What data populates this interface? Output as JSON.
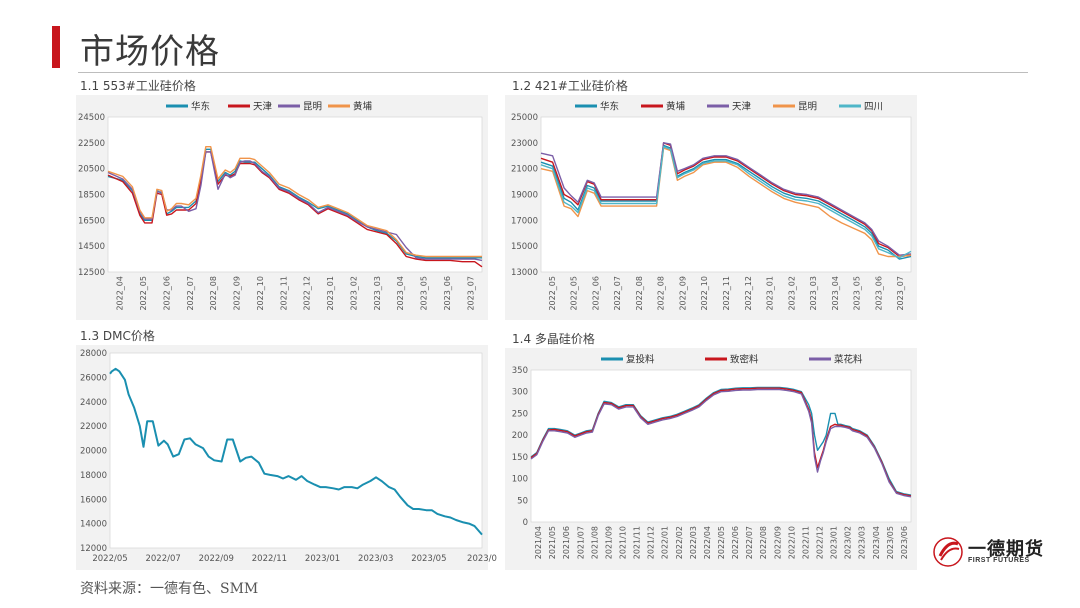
{
  "page": {
    "title": "市场价格",
    "source": "资料来源：一德有色、SMM",
    "logo_cn": "一德期货",
    "logo_en": "FIRST FUTURES"
  },
  "panels": {
    "p1": "1.1 553#工业硅价格",
    "p2": "1.2 421#工业硅价格",
    "p3": "1.3 DMC价格",
    "p4": "1.4 多晶硅价格"
  },
  "colors": {
    "accent": "#c8161d",
    "teal": "#1a8fb0",
    "red": "#c8161d",
    "purple": "#7b5ea7",
    "orange": "#f0944a",
    "cyan": "#4fb6c8"
  },
  "chart_data": [
    {
      "id": "c1",
      "type": "line",
      "ylim": [
        12500,
        24500
      ],
      "yticks": [
        "12500",
        "14500",
        "16500",
        "18500",
        "20500",
        "22500",
        "24500"
      ],
      "x_labels": [
        "2022_04",
        "2022_05",
        "2022_06",
        "2022_07",
        "2022_08",
        "2022_09",
        "2022_10",
        "2022_11",
        "2022_12",
        "2023_01",
        "2023_02",
        "2023_03",
        "2023_04",
        "2023_05",
        "2023_06",
        "2023_07"
      ],
      "x": [
        0,
        0.6,
        1,
        1.3,
        1.5,
        1.8,
        2,
        2.2,
        2.4,
        2.6,
        2.8,
        3,
        3.3,
        3.6,
        3.8,
        4,
        4.2,
        4.5,
        4.8,
        5,
        5.2,
        5.4,
        5.6,
        5.8,
        6,
        6.3,
        6.6,
        7,
        7.4,
        7.8,
        8.2,
        8.6,
        9,
        9.4,
        9.8,
        10.2,
        10.6,
        11,
        11.4,
        11.8,
        12.2,
        12.6,
        13,
        13.3,
        13.6,
        14,
        14.5,
        15,
        15.3
      ],
      "series": [
        {
          "name": "华东",
          "color": "#1a8fb0",
          "values": [
            19900,
            19600,
            18800,
            17000,
            16500,
            16500,
            18800,
            18600,
            17000,
            17200,
            17500,
            17500,
            17500,
            18000,
            19800,
            22000,
            22000,
            19500,
            20200,
            20000,
            20300,
            21100,
            21000,
            21000,
            21000,
            20500,
            20000,
            19100,
            18800,
            18300,
            17900,
            17400,
            17600,
            17300,
            17000,
            16500,
            16000,
            15700,
            15500,
            14900,
            13900,
            13700,
            13600,
            13600,
            13600,
            13600,
            13600,
            13600,
            13600
          ]
        },
        {
          "name": "天津",
          "color": "#c8161d",
          "values": [
            20000,
            19500,
            18600,
            16900,
            16300,
            16300,
            18600,
            18500,
            16900,
            17000,
            17300,
            17300,
            17300,
            17800,
            19600,
            21800,
            21800,
            19300,
            20000,
            19900,
            20100,
            20900,
            20900,
            20900,
            20800,
            20200,
            19800,
            18900,
            18600,
            18100,
            17700,
            17000,
            17400,
            17100,
            16800,
            16300,
            15800,
            15600,
            15400,
            14700,
            13700,
            13500,
            13400,
            13400,
            13400,
            13400,
            13300,
            13300,
            12900
          ]
        },
        {
          "name": "昆明",
          "color": "#7b5ea7",
          "values": [
            20200,
            19700,
            18900,
            17200,
            16600,
            16600,
            18700,
            18700,
            17300,
            17300,
            17600,
            17600,
            17200,
            17400,
            19200,
            21800,
            21800,
            18900,
            20100,
            19800,
            20000,
            21000,
            21100,
            21100,
            20900,
            20300,
            19900,
            19000,
            18700,
            18200,
            17800,
            17100,
            17500,
            17200,
            16900,
            16400,
            16000,
            15800,
            15600,
            15400,
            14400,
            13600,
            13500,
            13500,
            13500,
            13500,
            13500,
            13500,
            13400
          ]
        },
        {
          "name": "黄埔",
          "color": "#f0944a",
          "values": [
            20300,
            19900,
            19100,
            17300,
            16700,
            16700,
            18900,
            18800,
            17200,
            17400,
            17800,
            17800,
            17700,
            18200,
            20000,
            22200,
            22200,
            19700,
            20400,
            20200,
            20500,
            21300,
            21300,
            21300,
            21200,
            20700,
            20200,
            19300,
            19000,
            18500,
            18100,
            17500,
            17700,
            17400,
            17100,
            16600,
            16100,
            15900,
            15700,
            15000,
            14000,
            13800,
            13700,
            13700,
            13700,
            13700,
            13700,
            13700,
            13700
          ]
        }
      ]
    },
    {
      "id": "c2",
      "type": "line",
      "ylim": [
        13000,
        25000
      ],
      "yticks": [
        "13000",
        "15000",
        "17000",
        "19000",
        "21000",
        "23000",
        "25000"
      ],
      "x_labels": [
        "2022_05",
        "2022_05",
        "2022_06",
        "2022_07",
        "2022_08",
        "2022_08",
        "2022_09",
        "2022_10",
        "2022_11",
        "2022_12",
        "2023_01",
        "2023_02",
        "2023_03",
        "2023_04",
        "2023_05",
        "2023_06",
        "2023_07"
      ],
      "x": [
        0,
        0.5,
        1,
        1.3,
        1.6,
        2,
        2.3,
        2.6,
        3,
        3.5,
        4,
        4.5,
        5,
        5.3,
        5.6,
        5.9,
        6.2,
        6.6,
        7,
        7.5,
        8,
        8.5,
        9,
        9.5,
        10,
        10.5,
        11,
        11.5,
        12,
        12.5,
        13,
        13.5,
        14,
        14.3,
        14.6,
        15,
        15.5,
        16
      ],
      "series": [
        {
          "name": "华东",
          "color": "#1a8fb0",
          "values": [
            21500,
            21200,
            18700,
            18400,
            17800,
            19700,
            19500,
            18500,
            18500,
            18500,
            18500,
            18500,
            18500,
            22800,
            22600,
            20400,
            20700,
            21000,
            21500,
            21700,
            21700,
            21400,
            20800,
            20200,
            19600,
            19100,
            18800,
            18700,
            18500,
            18000,
            17500,
            17000,
            16500,
            16000,
            15000,
            14700,
            14000,
            14200
          ]
        },
        {
          "name": "黄埔",
          "color": "#c8161d",
          "values": [
            21800,
            21500,
            19000,
            18700,
            18200,
            20000,
            19800,
            18600,
            18600,
            18600,
            18600,
            18600,
            18600,
            23000,
            22800,
            20600,
            20900,
            21200,
            21700,
            21900,
            21900,
            21600,
            21000,
            20400,
            19800,
            19300,
            19000,
            18900,
            18700,
            18200,
            17700,
            17200,
            16700,
            16200,
            15200,
            14900,
            14200,
            14300
          ]
        },
        {
          "name": "天津",
          "color": "#7b5ea7",
          "values": [
            22200,
            22000,
            19500,
            18900,
            18400,
            20100,
            19900,
            18800,
            18800,
            18800,
            18800,
            18800,
            18800,
            23000,
            22900,
            20800,
            21000,
            21300,
            21800,
            22000,
            22000,
            21700,
            21100,
            20500,
            19900,
            19400,
            19100,
            19000,
            18800,
            18300,
            17800,
            17300,
            16800,
            16300,
            15400,
            15000,
            14300,
            14400
          ]
        },
        {
          "name": "昆明",
          "color": "#f0944a",
          "values": [
            21000,
            20800,
            18100,
            17900,
            17300,
            19300,
            19100,
            18100,
            18100,
            18100,
            18100,
            18100,
            18100,
            22600,
            22400,
            20100,
            20400,
            20700,
            21300,
            21500,
            21500,
            21100,
            20400,
            19800,
            19200,
            18700,
            18400,
            18200,
            18000,
            17300,
            16800,
            16400,
            16000,
            15500,
            14400,
            14200,
            14200,
            14300
          ]
        },
        {
          "name": "四川",
          "color": "#4fb6c8",
          "values": [
            21300,
            21000,
            18400,
            18100,
            17600,
            19500,
            19300,
            18300,
            18300,
            18300,
            18300,
            18300,
            18300,
            22700,
            22500,
            20300,
            20600,
            20900,
            21400,
            21600,
            21600,
            21300,
            20600,
            20000,
            19400,
            18900,
            18600,
            18500,
            18300,
            17800,
            17300,
            16800,
            16300,
            15800,
            14800,
            14500,
            14100,
            14600
          ]
        }
      ]
    },
    {
      "id": "c3",
      "type": "line",
      "ylim": [
        12000,
        28000
      ],
      "yticks": [
        "12000",
        "14000",
        "16000",
        "18000",
        "20000",
        "22000",
        "24000",
        "26000",
        "28000"
      ],
      "x_labels": [
        "2022/05",
        "2022/07",
        "2022/09",
        "2022/11",
        "2023/01",
        "2023/03",
        "2023/05",
        "2023/0"
      ],
      "x": [
        0,
        0.1,
        0.3,
        0.5,
        0.8,
        1,
        1.3,
        1.6,
        1.8,
        2,
        2.3,
        2.6,
        2.9,
        3.1,
        3.4,
        3.7,
        4,
        4.3,
        4.6,
        5,
        5.3,
        5.6,
        6,
        6.3,
        6.6,
        7,
        7.3,
        7.6,
        8,
        8.3,
        8.6,
        9,
        9.3,
        9.6,
        10,
        10.3,
        10.6,
        11,
        11.3,
        11.6,
        12,
        12.3,
        12.6,
        13,
        13.3,
        13.6,
        14,
        14.3,
        14.6,
        15,
        15.3,
        15.6,
        16,
        16.3,
        16.6,
        17,
        17.3,
        17.6,
        18,
        18.3,
        18.6,
        19,
        19.3,
        19.6,
        20
      ],
      "series": [
        {
          "name": "DMC",
          "color": "#1a8fb0",
          "values": [
            26300,
            26500,
            26700,
            26500,
            25800,
            24600,
            23500,
            22000,
            20300,
            22400,
            22400,
            20400,
            20800,
            20500,
            19500,
            19700,
            20900,
            21000,
            20500,
            20200,
            19500,
            19200,
            19100,
            20900,
            20900,
            19100,
            19400,
            19500,
            19000,
            18100,
            18000,
            17900,
            17700,
            17900,
            17600,
            17900,
            17500,
            17200,
            17000,
            17000,
            16900,
            16800,
            17000,
            17000,
            16900,
            17200,
            17500,
            17800,
            17500,
            17000,
            16800,
            16200,
            15500,
            15200,
            15200,
            15100,
            15100,
            14800,
            14600,
            14500,
            14300,
            14100,
            14000,
            13800,
            13100
          ]
        }
      ]
    },
    {
      "id": "c4",
      "type": "line",
      "ylim": [
        0,
        350
      ],
      "yticks": [
        "0",
        "50",
        "100",
        "150",
        "200",
        "250",
        "300",
        "350"
      ],
      "x_labels": [
        "2021/04",
        "2021/05",
        "2021/06",
        "2021/07",
        "2021/08",
        "2021/09",
        "2021/10",
        "2021/11",
        "2021/12",
        "2022/01",
        "2022/02",
        "2022/03",
        "2022/04",
        "2022/05",
        "2022/06",
        "2022/07",
        "2022/08",
        "2022/09",
        "2022/10",
        "2022/11",
        "2022/12",
        "2023/01",
        "2023/02",
        "2023/03",
        "2023/04",
        "2023/05",
        "2023/06"
      ],
      "x": [
        0,
        0.4,
        0.8,
        1.2,
        1.6,
        2,
        2.5,
        3,
        3.4,
        3.8,
        4.2,
        4.6,
        5,
        5.5,
        6,
        6.5,
        7,
        7.5,
        8,
        8.5,
        9,
        9.5,
        10,
        10.5,
        11,
        11.5,
        12,
        12.5,
        13,
        13.5,
        14,
        14.5,
        15,
        15.5,
        16,
        16.5,
        17,
        17.5,
        18,
        18.5,
        19,
        19.2,
        19.4,
        19.6,
        19.8,
        20,
        20.2,
        20.5,
        20.8,
        21,
        21.2,
        21.5,
        21.8,
        22,
        22.5,
        23,
        23.5,
        24,
        24.5,
        25,
        25.5,
        26
      ],
      "series": [
        {
          "name": "复投料",
          "color": "#1a8fb0",
          "values": [
            150,
            160,
            190,
            215,
            215,
            213,
            210,
            200,
            205,
            210,
            212,
            250,
            278,
            275,
            265,
            270,
            270,
            245,
            230,
            235,
            240,
            243,
            248,
            255,
            262,
            270,
            285,
            298,
            305,
            306,
            308,
            309,
            309,
            310,
            310,
            310,
            310,
            308,
            305,
            300,
            270,
            250,
            200,
            165,
            175,
            185,
            200,
            250,
            250,
            225,
            225,
            222,
            220,
            215,
            210,
            200,
            175,
            140,
            100,
            70,
            65,
            62
          ]
        },
        {
          "name": "致密料",
          "color": "#c8161d",
          "values": [
            148,
            158,
            188,
            212,
            213,
            211,
            208,
            198,
            203,
            208,
            210,
            248,
            275,
            273,
            263,
            268,
            268,
            243,
            228,
            233,
            238,
            241,
            246,
            253,
            260,
            268,
            283,
            296,
            303,
            304,
            306,
            307,
            307,
            308,
            308,
            308,
            308,
            306,
            303,
            298,
            260,
            235,
            160,
            125,
            145,
            165,
            190,
            220,
            225,
            223,
            223,
            220,
            218,
            213,
            208,
            198,
            172,
            138,
            95,
            68,
            63,
            60
          ]
        },
        {
          "name": "菜花料",
          "color": "#7b5ea7",
          "values": [
            145,
            155,
            185,
            210,
            210,
            208,
            205,
            195,
            200,
            205,
            207,
            245,
            272,
            270,
            260,
            265,
            265,
            240,
            225,
            230,
            235,
            238,
            243,
            250,
            257,
            265,
            280,
            293,
            300,
            301,
            303,
            304,
            304,
            305,
            305,
            305,
            305,
            303,
            300,
            295,
            255,
            228,
            150,
            115,
            140,
            160,
            185,
            215,
            220,
            220,
            220,
            218,
            215,
            210,
            205,
            195,
            170,
            135,
            92,
            66,
            61,
            58
          ]
        }
      ]
    }
  ]
}
